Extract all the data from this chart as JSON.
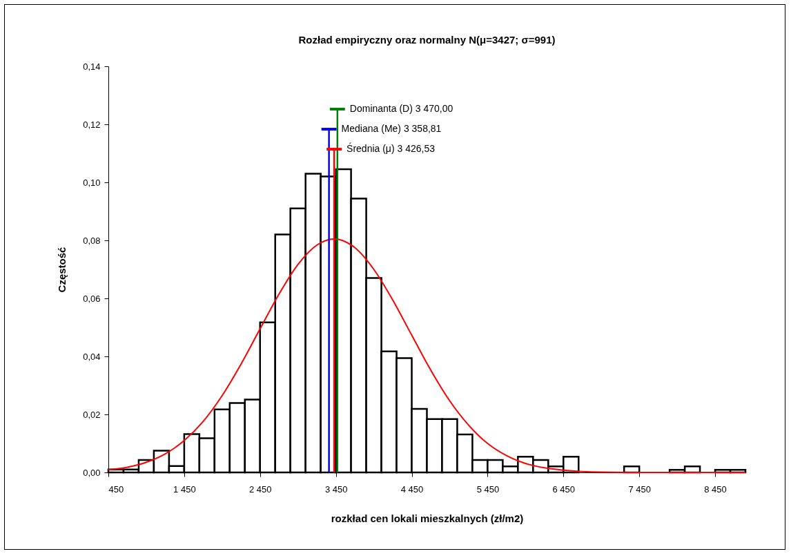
{
  "chart_data": {
    "type": "histogram",
    "title": "Rozład empiryczny oraz normalny N(μ=3427; σ=991)",
    "xlabel": "rozkład cen lokali mieszkalnych (zł/m2)",
    "ylabel": "Częstość",
    "bins": [
      450,
      650,
      850,
      1050,
      1250,
      1450,
      1650,
      1850,
      2050,
      2250,
      2450,
      2650,
      2850,
      3050,
      3250,
      3450,
      3650,
      3850,
      4050,
      4250,
      4450,
      4650,
      4850,
      5050,
      5250,
      5450,
      5650,
      5850,
      6050,
      6250,
      6450,
      6650,
      6850,
      7050,
      7250,
      7450,
      7650,
      7850,
      8050,
      8250,
      8450,
      8650,
      8850
    ],
    "series": [
      {
        "color": "#ffffff",
        "values": [
          0.001,
          0.001,
          0.0043,
          0.0075,
          0.0022,
          0.0132,
          0.0118,
          0.0217,
          0.0239,
          0.0251,
          0.0517,
          0.082,
          0.091,
          0.103,
          0.102,
          0.1045,
          0.0944,
          0.067,
          0.0417,
          0.0394,
          0.0219,
          0.0184,
          0.0184,
          0.0131,
          0.0043,
          0.0043,
          0.0021,
          0.0054,
          0.0043,
          0.0021,
          0.0054,
          0,
          0,
          0,
          0.0021,
          0,
          0,
          0.0009,
          0.0021,
          0,
          0.0009,
          0.0009
        ]
      },
      {
        "type": "line",
        "color": "#ff0000",
        "x": [
          450,
          700,
          950,
          1200,
          1450,
          1700,
          1950,
          2200,
          2450,
          2700,
          2950,
          3200,
          3427,
          3700,
          3950,
          4200,
          4450,
          4700,
          4950,
          5200,
          5450,
          5700,
          5950,
          6200,
          6450,
          6950,
          7450,
          8850
        ],
        "values": [
          0.0009,
          0.0018,
          0.0035,
          0.0064,
          0.011,
          0.0176,
          0.0265,
          0.0374,
          0.0495,
          0.0615,
          0.0717,
          0.0784,
          0.0805,
          0.0775,
          0.07,
          0.0594,
          0.0473,
          0.0353,
          0.0247,
          0.0163,
          0.01,
          0.0058,
          0.0031,
          0.0016,
          0.0008,
          0.0001,
          0,
          0
        ]
      }
    ],
    "ref_lines": [
      {
        "axis": "x",
        "value": 3470,
        "label": "Dominanta (D) 3 470,00",
        "color": "#008000"
      },
      {
        "axis": "x",
        "value": 3358.81,
        "label": "Mediana (Me) 3 358,81",
        "color": "#0000ff"
      },
      {
        "axis": "x",
        "value": 3426.53,
        "label": "Średnia (μ) 3 426,53",
        "color": "#ff0000"
      }
    ],
    "xlim": [
      450,
      8850
    ],
    "xticks": [
      450,
      {
        "value": 1450,
        "label": "1 450"
      },
      {
        "value": 2450,
        "label": "2 450"
      },
      {
        "value": 3450,
        "label": "3 450"
      },
      {
        "value": 4450,
        "label": "4 450"
      },
      {
        "value": 5450,
        "label": "5 450"
      },
      {
        "value": 6450,
        "label": "6 450"
      },
      {
        "value": 7450,
        "label": "7 450"
      },
      {
        "value": 8450,
        "label": "8 450"
      }
    ],
    "ylim": [
      0,
      0.14
    ],
    "yticks": [
      {
        "value": 0,
        "label": "0,00"
      },
      {
        "value": 0.02,
        "label": "0,02"
      },
      {
        "value": 0.04,
        "label": "0,04"
      },
      {
        "value": 0.06,
        "label": "0,06"
      },
      {
        "value": 0.08,
        "label": "0,08"
      },
      {
        "value": 0.1,
        "label": "0,10"
      },
      {
        "value": 0.12,
        "label": "0,12"
      },
      {
        "value": 0.14,
        "label": "0,14"
      }
    ],
    "grid": false,
    "line_style": "solid",
    "marker": "none"
  }
}
